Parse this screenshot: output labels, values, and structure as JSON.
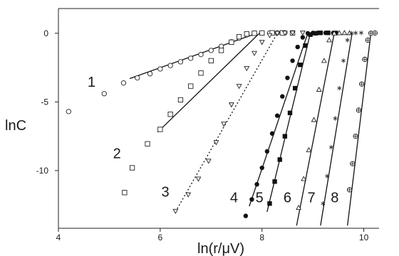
{
  "chart_data": {
    "type": "scatter",
    "xlabel": "ln(r/μV)",
    "ylabel": "lnC",
    "xlim": [
      4,
      10.3
    ],
    "ylim": [
      -14.2,
      1.8
    ],
    "x_ticks": [
      4,
      6,
      8,
      10
    ],
    "y_ticks": [
      0,
      -5,
      -10
    ],
    "grid": false,
    "legend": "none",
    "series": [
      {
        "name": "1",
        "marker": "open-circle",
        "points": [
          [
            4.2,
            -5.7
          ],
          [
            4.9,
            -4.4
          ],
          [
            5.28,
            -3.62
          ],
          [
            5.55,
            -3.25
          ],
          [
            5.8,
            -2.95
          ],
          [
            6.0,
            -2.6
          ],
          [
            6.2,
            -2.35
          ],
          [
            6.4,
            -2.08
          ],
          [
            6.6,
            -1.82
          ],
          [
            6.8,
            -1.55
          ],
          [
            7.0,
            -1.25
          ],
          [
            7.2,
            -0.95
          ],
          [
            7.4,
            -0.62
          ],
          [
            7.55,
            -0.35
          ],
          [
            7.7,
            -0.12
          ],
          [
            7.85,
            0.0
          ],
          [
            8.0,
            0.02
          ],
          [
            8.15,
            0.02
          ],
          [
            8.3,
            0.03
          ],
          [
            8.45,
            0.03
          ]
        ],
        "fit": [
          [
            5.4,
            -3.3
          ],
          [
            7.9,
            0.0
          ]
        ]
      },
      {
        "name": "2",
        "marker": "open-square",
        "points": [
          [
            5.3,
            -11.6
          ],
          [
            5.45,
            -9.8
          ],
          [
            5.75,
            -8.05
          ],
          [
            6.0,
            -7.0
          ],
          [
            6.2,
            -5.9
          ],
          [
            6.4,
            -4.85
          ],
          [
            6.6,
            -3.85
          ],
          [
            6.8,
            -2.9
          ],
          [
            7.0,
            -2.0
          ],
          [
            7.2,
            -1.25
          ],
          [
            7.4,
            -0.65
          ],
          [
            7.55,
            -0.25
          ],
          [
            7.7,
            -0.05
          ],
          [
            7.85,
            0.0
          ],
          [
            8.0,
            0.02
          ],
          [
            8.2,
            0.03
          ],
          [
            8.4,
            0.03
          ],
          [
            8.6,
            0.02
          ]
        ],
        "fit": [
          [
            5.95,
            -7.2
          ],
          [
            7.95,
            0.0
          ]
        ]
      },
      {
        "name": "3",
        "marker": "open-triangle-down",
        "points": [
          [
            6.3,
            -12.95
          ],
          [
            6.55,
            -11.75
          ],
          [
            6.75,
            -10.6
          ],
          [
            6.95,
            -9.3
          ],
          [
            7.1,
            -7.95
          ],
          [
            7.25,
            -6.6
          ],
          [
            7.4,
            -5.2
          ],
          [
            7.55,
            -3.85
          ],
          [
            7.7,
            -2.55
          ],
          [
            7.85,
            -1.45
          ],
          [
            8.0,
            -0.65
          ],
          [
            8.15,
            -0.15
          ],
          [
            8.3,
            0.0
          ],
          [
            8.45,
            0.02
          ],
          [
            8.6,
            0.03
          ],
          [
            8.8,
            0.03
          ]
        ],
        "fit": [
          [
            6.3,
            -13.0
          ],
          [
            8.3,
            0.0
          ]
        ]
      },
      {
        "name": "4",
        "marker": "filled-circle",
        "points": [
          [
            7.68,
            -13.3
          ],
          [
            7.8,
            -12.1
          ],
          [
            7.9,
            -11.0
          ],
          [
            8.0,
            -9.8
          ],
          [
            8.1,
            -8.6
          ],
          [
            8.2,
            -7.3
          ],
          [
            8.3,
            -6.0
          ],
          [
            8.4,
            -4.6
          ],
          [
            8.5,
            -3.25
          ],
          [
            8.6,
            -2.0
          ],
          [
            8.7,
            -1.0
          ],
          [
            8.8,
            -0.3
          ],
          [
            8.9,
            0.0
          ],
          [
            9.0,
            0.02
          ],
          [
            9.1,
            0.03
          ],
          [
            9.25,
            0.03
          ],
          [
            9.4,
            0.02
          ]
        ],
        "fit": [
          [
            7.75,
            -12.6
          ],
          [
            8.9,
            0.0
          ]
        ]
      },
      {
        "name": "5",
        "marker": "filled-square",
        "points": [
          [
            8.15,
            -12.4
          ],
          [
            8.25,
            -10.8
          ],
          [
            8.35,
            -9.2
          ],
          [
            8.45,
            -7.5
          ],
          [
            8.55,
            -5.8
          ],
          [
            8.65,
            -4.0
          ],
          [
            8.75,
            -2.3
          ],
          [
            8.85,
            -0.9
          ],
          [
            8.95,
            -0.1
          ],
          [
            9.05,
            0.0
          ],
          [
            9.15,
            0.03
          ],
          [
            9.3,
            0.03
          ],
          [
            9.45,
            0.02
          ]
        ],
        "fit": [
          [
            8.1,
            -13.0
          ],
          [
            8.95,
            0.0
          ]
        ]
      },
      {
        "name": "6",
        "marker": "open-triangle-up",
        "points": [
          [
            8.72,
            -12.7
          ],
          [
            8.82,
            -10.6
          ],
          [
            8.92,
            -8.5
          ],
          [
            9.02,
            -6.3
          ],
          [
            9.12,
            -4.1
          ],
          [
            9.22,
            -2.0
          ],
          [
            9.32,
            -0.5
          ],
          [
            9.42,
            0.0
          ],
          [
            9.52,
            0.02
          ],
          [
            9.62,
            0.03
          ],
          [
            9.72,
            0.02
          ]
        ],
        "fit": [
          [
            8.68,
            -14.0
          ],
          [
            9.42,
            0.0
          ]
        ]
      },
      {
        "name": "7",
        "marker": "asterisk",
        "points": [
          [
            9.2,
            -12.4
          ],
          [
            9.28,
            -10.4
          ],
          [
            9.36,
            -8.3
          ],
          [
            9.44,
            -6.2
          ],
          [
            9.52,
            -4.0
          ],
          [
            9.6,
            -2.0
          ],
          [
            9.68,
            -0.5
          ],
          [
            9.76,
            0.0
          ],
          [
            9.84,
            0.02
          ],
          [
            9.95,
            0.03
          ]
        ],
        "fit": [
          [
            9.15,
            -14.0
          ],
          [
            9.77,
            0.0
          ]
        ]
      },
      {
        "name": "8",
        "marker": "circle-plus",
        "points": [
          [
            9.72,
            -11.4
          ],
          [
            9.78,
            -9.5
          ],
          [
            9.84,
            -7.5
          ],
          [
            9.9,
            -5.6
          ],
          [
            9.96,
            -3.7
          ],
          [
            10.02,
            -1.9
          ],
          [
            10.08,
            -0.5
          ],
          [
            10.14,
            0.0
          ],
          [
            10.22,
            0.02
          ]
        ],
        "fit": [
          [
            9.68,
            -14.0
          ],
          [
            10.14,
            0.0
          ]
        ]
      }
    ],
    "annotations": [
      {
        "text": "1",
        "x": 4.65,
        "y": -3.9
      },
      {
        "text": "2",
        "x": 5.15,
        "y": -9.1
      },
      {
        "text": "3",
        "x": 6.1,
        "y": -11.9
      },
      {
        "text": "4",
        "x": 7.45,
        "y": -12.3
      },
      {
        "text": "5",
        "x": 7.95,
        "y": -12.3
      },
      {
        "text": "6",
        "x": 8.5,
        "y": -12.3
      },
      {
        "text": "7",
        "x": 8.97,
        "y": -12.3
      },
      {
        "text": "8",
        "x": 9.43,
        "y": -12.3
      }
    ]
  }
}
